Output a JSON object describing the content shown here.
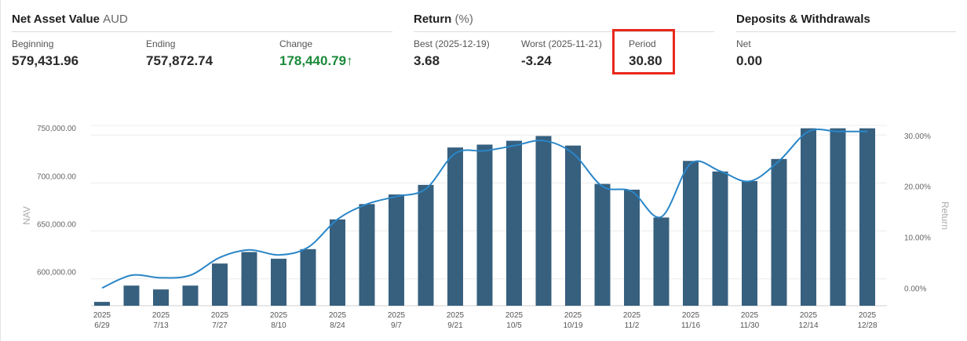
{
  "nav_section": {
    "title": "Net Asset Value",
    "currency": "AUD"
  },
  "nav_stats": [
    {
      "label": "Beginning",
      "value": "579,431.96"
    },
    {
      "label": "Ending",
      "value": "757,872.74"
    },
    {
      "label": "Change",
      "value": "178,440.79",
      "arrow": "↑"
    }
  ],
  "return_section": {
    "title": "Return",
    "unit": "(%)"
  },
  "return_stats": [
    {
      "label": "Best (2025-12-19)",
      "value": "3.68"
    },
    {
      "label": "Worst (2025-11-21)",
      "value": "-3.24"
    },
    {
      "label": "Period",
      "value": "30.80"
    }
  ],
  "deposits_section": {
    "title": "Deposits & Withdrawals"
  },
  "deposits_stats": [
    {
      "label": "Net",
      "value": "0.00"
    }
  ],
  "colors": {
    "bar": "#37607f",
    "line": "#2a86c7",
    "positive": "#1b8a3a",
    "highlight": "#e8281c"
  },
  "chart_data": {
    "type": "bar",
    "combo": "bar+line",
    "title": "",
    "ylabel": "NAV",
    "y2label": "Return",
    "ylim": [
      572000,
      760000
    ],
    "y2lim": [
      -3.5,
      32
    ],
    "yticks": [
      600000,
      650000,
      700000,
      750000
    ],
    "ytick_labels": [
      "600,000.00",
      "650,000.00",
      "700,000.00",
      "750,000.00"
    ],
    "y2ticks": [
      0,
      10,
      20,
      30
    ],
    "y2tick_labels": [
      "0.00%",
      "10.00%",
      "20.00%",
      "30.00%"
    ],
    "x_labels": [
      [
        "2025",
        "6/29"
      ],
      [
        "2025",
        "7/13"
      ],
      [
        "2025",
        "7/27"
      ],
      [
        "2025",
        "8/10"
      ],
      [
        "2025",
        "8/24"
      ],
      [
        "2025",
        "9/7"
      ],
      [
        "2025",
        "9/21"
      ],
      [
        "2025",
        "10/5"
      ],
      [
        "2025",
        "10/19"
      ],
      [
        "2025",
        "11/2"
      ],
      [
        "2025",
        "11/16"
      ],
      [
        "2025",
        "11/30"
      ],
      [
        "2025",
        "12/14"
      ],
      [
        "2025",
        "12/28"
      ]
    ],
    "grid": true,
    "legend": "none",
    "series": [
      {
        "type": "bar",
        "axis": "left",
        "values": [
          576000,
          593000,
          589000,
          593000,
          616000,
          628000,
          621000,
          631000,
          662000,
          678000,
          688000,
          698000,
          737000,
          740000,
          744000,
          749000,
          739000,
          699000,
          693000,
          664000,
          723000,
          712000,
          702000,
          725000,
          757000,
          757000,
          757000
        ]
      },
      {
        "type": "line",
        "axis": "right",
        "values": [
          0.0,
          2.5,
          2.0,
          2.5,
          6.0,
          7.5,
          6.5,
          8.0,
          13.5,
          16.5,
          18.0,
          19.5,
          26.5,
          27.0,
          28.0,
          29.0,
          26.5,
          20.0,
          19.0,
          14.0,
          24.5,
          23.0,
          21.0,
          25.0,
          30.8,
          30.8,
          30.8
        ]
      }
    ]
  }
}
